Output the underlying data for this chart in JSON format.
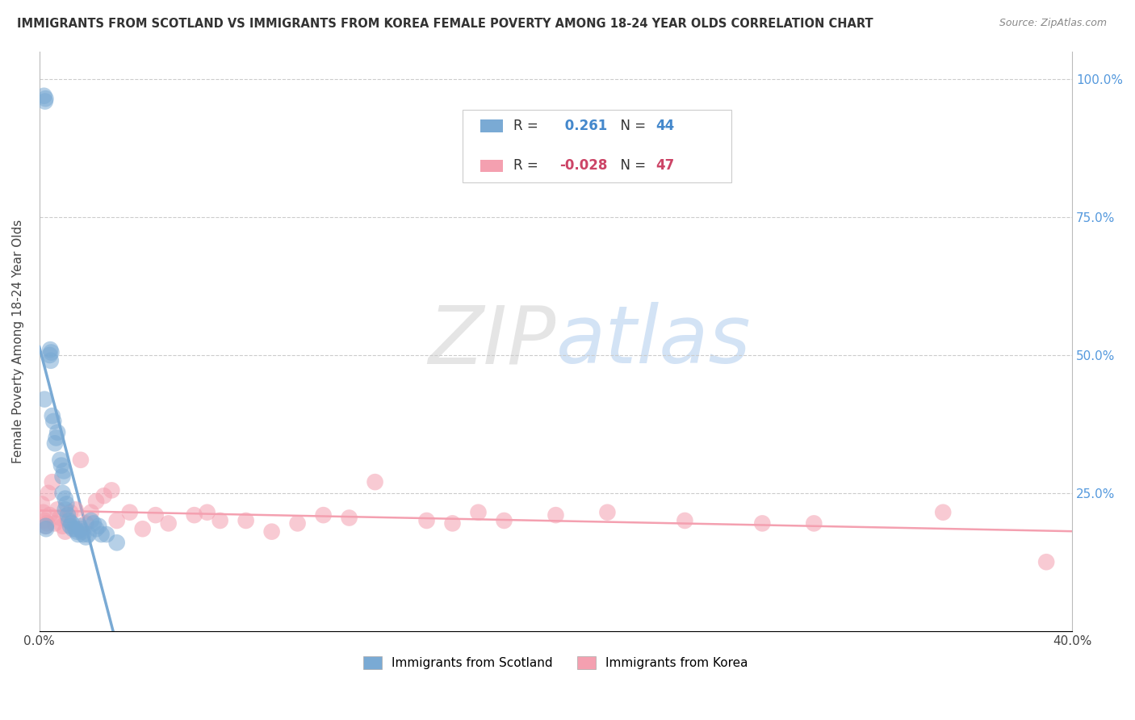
{
  "title": "IMMIGRANTS FROM SCOTLAND VS IMMIGRANTS FROM KOREA FEMALE POVERTY AMONG 18-24 YEAR OLDS CORRELATION CHART",
  "source": "Source: ZipAtlas.com",
  "ylabel": "Female Poverty Among 18-24 Year Olds",
  "xlim": [
    0.0,
    0.4
  ],
  "ylim": [
    0.0,
    1.05
  ],
  "scotland_color": "#7aaad4",
  "korea_color": "#f4a0b0",
  "scotland_R": 0.261,
  "scotland_N": 44,
  "korea_R": -0.028,
  "korea_N": 47,
  "legend_label_scotland": "Immigrants from Scotland",
  "legend_label_korea": "Immigrants from Korea",
  "scotland_x": [
    0.0018,
    0.0022,
    0.0024,
    0.004,
    0.0042,
    0.0044,
    0.0046,
    0.002,
    0.005,
    0.0055,
    0.006,
    0.0065,
    0.007,
    0.008,
    0.0085,
    0.009,
    0.0095,
    0.01,
    0.0105,
    0.011,
    0.0115,
    0.012,
    0.0125,
    0.013,
    0.014,
    0.0145,
    0.015,
    0.0155,
    0.016,
    0.0165,
    0.017,
    0.018,
    0.019,
    0.02,
    0.021,
    0.022,
    0.023,
    0.024,
    0.0025,
    0.0026,
    0.009,
    0.01,
    0.026,
    0.03
  ],
  "scotland_y": [
    0.97,
    0.96,
    0.965,
    0.5,
    0.51,
    0.49,
    0.505,
    0.42,
    0.39,
    0.38,
    0.34,
    0.35,
    0.36,
    0.31,
    0.3,
    0.28,
    0.29,
    0.22,
    0.23,
    0.21,
    0.2,
    0.19,
    0.195,
    0.185,
    0.185,
    0.18,
    0.175,
    0.19,
    0.185,
    0.18,
    0.175,
    0.17,
    0.175,
    0.2,
    0.195,
    0.185,
    0.19,
    0.175,
    0.19,
    0.185,
    0.25,
    0.24,
    0.175,
    0.16
  ],
  "korea_x": [
    0.001,
    0.0015,
    0.002,
    0.0025,
    0.003,
    0.0035,
    0.004,
    0.005,
    0.006,
    0.007,
    0.008,
    0.009,
    0.01,
    0.011,
    0.012,
    0.014,
    0.016,
    0.018,
    0.02,
    0.022,
    0.025,
    0.028,
    0.03,
    0.035,
    0.04,
    0.045,
    0.05,
    0.06,
    0.065,
    0.07,
    0.08,
    0.09,
    0.1,
    0.11,
    0.12,
    0.13,
    0.15,
    0.16,
    0.17,
    0.18,
    0.2,
    0.22,
    0.25,
    0.28,
    0.3,
    0.35,
    0.39
  ],
  "korea_y": [
    0.23,
    0.215,
    0.2,
    0.19,
    0.195,
    0.25,
    0.21,
    0.27,
    0.195,
    0.22,
    0.205,
    0.19,
    0.18,
    0.2,
    0.215,
    0.22,
    0.31,
    0.195,
    0.215,
    0.235,
    0.245,
    0.255,
    0.2,
    0.215,
    0.185,
    0.21,
    0.195,
    0.21,
    0.215,
    0.2,
    0.2,
    0.18,
    0.195,
    0.21,
    0.205,
    0.27,
    0.2,
    0.195,
    0.215,
    0.2,
    0.21,
    0.215,
    0.2,
    0.195,
    0.195,
    0.215,
    0.125
  ]
}
